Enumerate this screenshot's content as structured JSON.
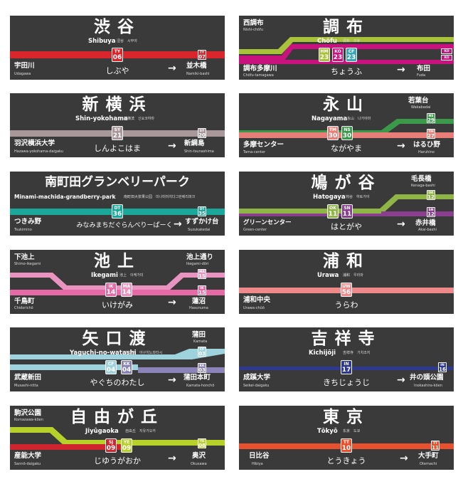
{
  "signs": {
    "shibuya": {
      "name": "渋谷",
      "romaji": "Shibuya",
      "ko": "涩谷　시부야",
      "kana": "しぶや",
      "left": {
        "name": "宇田川",
        "romaji": "Udagawa"
      },
      "right": {
        "name": "並木橋",
        "romaji": "Namiki-bashi"
      },
      "badge": {
        "code": "TY",
        "num": "06"
      },
      "next": {
        "code": "TY",
        "num": "07"
      },
      "color": "#d9262c"
    },
    "chofu": {
      "name": "調布",
      "romaji": "Chōfu",
      "ko": "调布　조후",
      "kana": "ちょうふ",
      "upleft": {
        "name": "西調布",
        "romaji": "Nishi-chōfu"
      },
      "left": {
        "name": "調布多摩川",
        "romaji": "Chōfu-tamagawa"
      },
      "right": {
        "name": "布田",
        "romaji": "Fuda"
      },
      "badges": [
        {
          "code": "HM",
          "num": "23"
        },
        {
          "code": "KO",
          "num": "23"
        },
        {
          "code": "CF",
          "num": "23"
        }
      ],
      "minis": [
        {
          "code": "KO",
          "num": "22"
        },
        {
          "code": "KO",
          "num": "22"
        }
      ]
    },
    "shinyokohama": {
      "name": "新横浜",
      "romaji": "Shin-yokohama",
      "ko": "新横滨　신요코하마",
      "kana": "しんよこはま",
      "left": {
        "name": "羽沢横浜大学",
        "romaji": "Hazawa-yokohama-daigaku"
      },
      "right": {
        "name": "新綱島",
        "romaji": "Shin-tsunashima"
      },
      "badge": {
        "code": "SY",
        "num": "21"
      },
      "next": {
        "code": "SY",
        "num": "20"
      }
    },
    "nagayama": {
      "name": "永山",
      "romaji": "Nagayama",
      "ko": "永山　나가야마",
      "kana": "ながやま",
      "upright": {
        "name": "若葉台",
        "romaji": "Wakabadai"
      },
      "left": {
        "name": "多摩センター",
        "romaji": "Tama-center"
      },
      "right": {
        "name": "はるひ野",
        "romaji": "Haruhino"
      },
      "badges": [
        {
          "code": "TM",
          "num": "30"
        },
        {
          "code": "NS",
          "num": "30"
        }
      ],
      "minis": [
        {
          "code": "NS",
          "num": "29"
        },
        {
          "code": "TM",
          "num": "27"
        }
      ]
    },
    "minamimachida": {
      "name": "南町田グランベリーパーク",
      "romaji": "Minami-machida-grandberry-park",
      "ko": "南町田大浆果公园　미나미마치다그란베리파크",
      "kana": "みなみまちだぐらんべりーぱーく",
      "left": {
        "name": "つきみ野",
        "romaji": "Tsukimino"
      },
      "right": {
        "name": "すずかけ台",
        "romaji": "Suzukakedai"
      },
      "badge": {
        "code": "DT",
        "num": "36"
      },
      "next": {
        "code": "DT",
        "num": "35"
      }
    },
    "hatogaya": {
      "name": "鳩が谷",
      "romaji": "Hatogaya",
      "ko": "鸠谷　하토가야",
      "kana": "はとがや",
      "upright": {
        "name": "毛長橋",
        "romaji": "Kenaga-bashi"
      },
      "left": {
        "name": "グリーンセンター",
        "romaji": "Green-center"
      },
      "right": {
        "name": "赤井橋",
        "romaji": "Akai-bashi"
      },
      "badges": [
        {
          "code": "OK",
          "num": "11"
        },
        {
          "code": "SN",
          "num": "11"
        }
      ],
      "minis": [
        {
          "code": "OK",
          "num": "12"
        },
        {
          "code": "SN",
          "num": "12"
        }
      ]
    },
    "ikegami": {
      "name": "池上",
      "romaji": "Ikegami",
      "ko": "池上　이케가미",
      "kana": "いけがみ",
      "upleft": {
        "name": "下池上",
        "romaji": "Shimo-ikegami"
      },
      "upright": {
        "name": "池上通り",
        "romaji": "Ikegami-dōri"
      },
      "left": {
        "name": "千鳥町",
        "romaji": "Chidorichō"
      },
      "right": {
        "name": "蓮沼",
        "romaji": "Hasunuma"
      },
      "badges": [
        {
          "code": "IK",
          "num": "14"
        },
        {
          "code": "MA",
          "num": "14"
        }
      ],
      "minis": [
        {
          "code": "MA",
          "num": "15"
        },
        {
          "code": "IK",
          "num": "15"
        }
      ]
    },
    "urawa": {
      "name": "浦和",
      "romaji": "Urawa",
      "ko": "浦和　우라와",
      "kana": "うらわ",
      "left": {
        "name": "浦和中央",
        "romaji": "Urawa-chūō"
      },
      "badge": {
        "code": "UW",
        "num": "56"
      }
    },
    "yaguchi": {
      "name": "矢口渡",
      "romaji": "Yaguchi-no-watashi",
      "ko": "矢口渡　야구치노와타시",
      "kana": "やぐちのわたし",
      "upright": {
        "name": "蒲田",
        "romaji": "Kamata"
      },
      "left": {
        "name": "武蔵新田",
        "romaji": "Musashi-nitta"
      },
      "right": {
        "name": "蒲田本町",
        "romaji": "Kamata-honchō"
      },
      "badges": [
        {
          "code": "CF",
          "num": "04"
        },
        {
          "code": "KK",
          "num": "04"
        }
      ],
      "minis": [
        {
          "code": "CF",
          "num": "03"
        },
        {
          "code": "KK",
          "num": "03"
        }
      ]
    },
    "kichijoji": {
      "name": "吉祥寺",
      "romaji": "Kichijōji",
      "ko": "吉祥寺　기치조지",
      "kana": "きちじょうじ",
      "left": {
        "name": "成蹊大学",
        "romaji": "Seikei-daigaku"
      },
      "right": {
        "name": "井の頭公園",
        "romaji": "Inokashira-kōen"
      },
      "badge": {
        "code": "IN",
        "num": "17"
      },
      "next": {
        "code": "IN",
        "num": "16"
      }
    },
    "jiyugaoka": {
      "name": "自由が丘",
      "romaji": "Jiyūgaoka",
      "ko": "自由丘　지유가오카",
      "kana": "じゆうがおか",
      "upleft": {
        "name": "駒沢公園",
        "romaji": "Komazawa-kōen"
      },
      "left": {
        "name": "産能大学",
        "romaji": "Sannō-daigaku"
      },
      "right": {
        "name": "奥沢",
        "romaji": "Okusawa"
      },
      "badges": [
        {
          "code": "SJ",
          "num": "09"
        },
        {
          "code": "YE",
          "num": "09"
        }
      ],
      "minis": [
        {
          "code": "YE",
          "num": "08"
        }
      ]
    },
    "tokyo": {
      "name": "東京",
      "romaji": "Tōkyō",
      "ko": "东京　도쿄",
      "kana": "とうきょう",
      "left": {
        "name": "日比谷",
        "romaji": "Hibiya"
      },
      "right": {
        "name": "大手町",
        "romaji": "Otemachi"
      },
      "badge": {
        "code": "TT",
        "num": "10"
      },
      "next": {
        "code": "TT",
        "num": "11"
      }
    }
  },
  "arrow_glyph": "→"
}
